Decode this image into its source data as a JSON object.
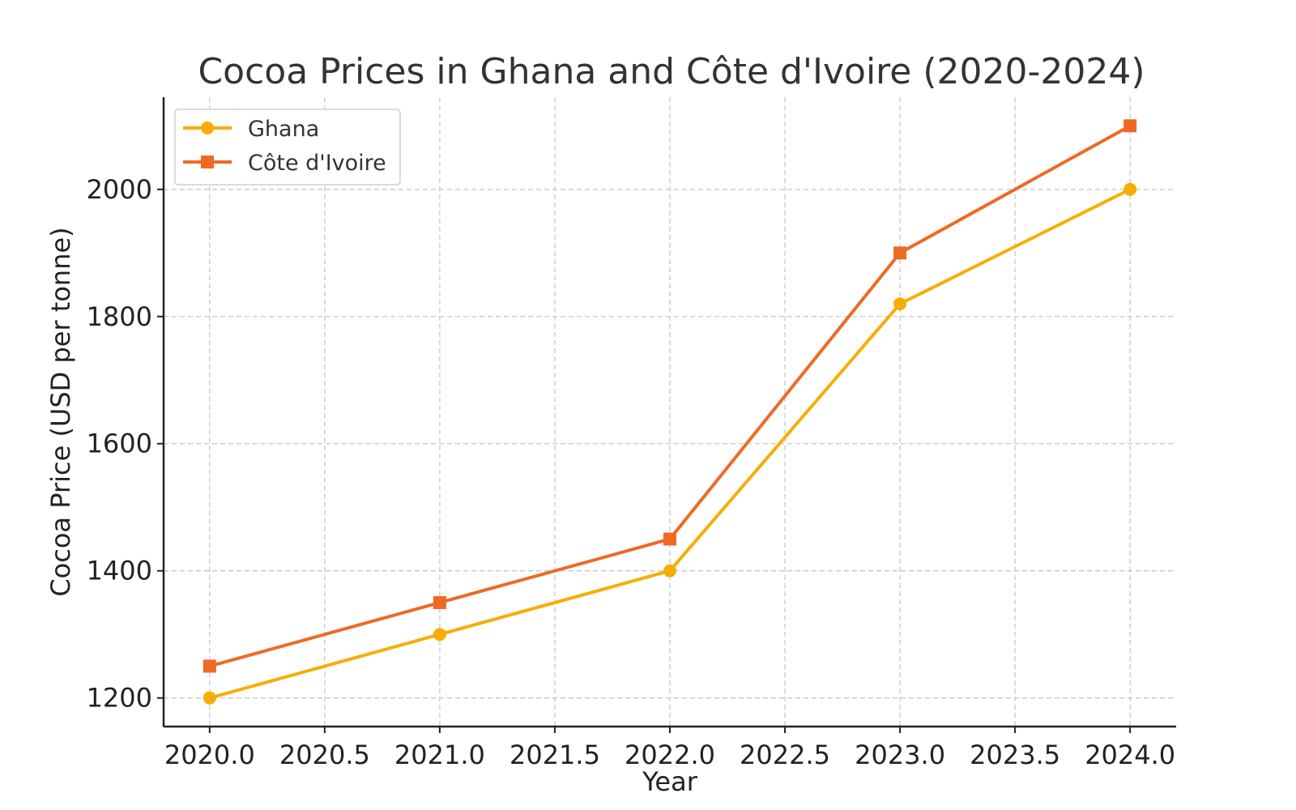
{
  "chart_data": {
    "type": "line",
    "title": "Cocoa Prices in Ghana and Côte d'Ivoire (2020-2024)",
    "xlabel": "Year",
    "ylabel": "Cocoa Price (USD per tonne)",
    "x": [
      2020,
      2021,
      2022,
      2023,
      2024
    ],
    "xlim": [
      2019.8,
      2024.2
    ],
    "ylim": [
      1155,
      2145
    ],
    "x_ticks": [
      2020.0,
      2020.5,
      2021.0,
      2021.5,
      2022.0,
      2022.5,
      2023.0,
      2023.5,
      2024.0
    ],
    "x_tick_labels": [
      "2020.0",
      "2020.5",
      "2021.0",
      "2021.5",
      "2022.0",
      "2022.5",
      "2023.0",
      "2023.5",
      "2024.0"
    ],
    "y_ticks": [
      1200,
      1400,
      1600,
      1800,
      2000
    ],
    "y_tick_labels": [
      "1200",
      "1400",
      "1600",
      "1800",
      "2000"
    ],
    "grid": true,
    "legend_position": "top-left",
    "series": [
      {
        "name": "Ghana",
        "values": [
          1200,
          1300,
          1400,
          1820,
          2000
        ],
        "color": "#F6AE06",
        "marker": "circle"
      },
      {
        "name": "Côte d'Ivoire",
        "values": [
          1250,
          1350,
          1450,
          1900,
          2100
        ],
        "color": "#EE6A24",
        "marker": "square"
      }
    ]
  }
}
